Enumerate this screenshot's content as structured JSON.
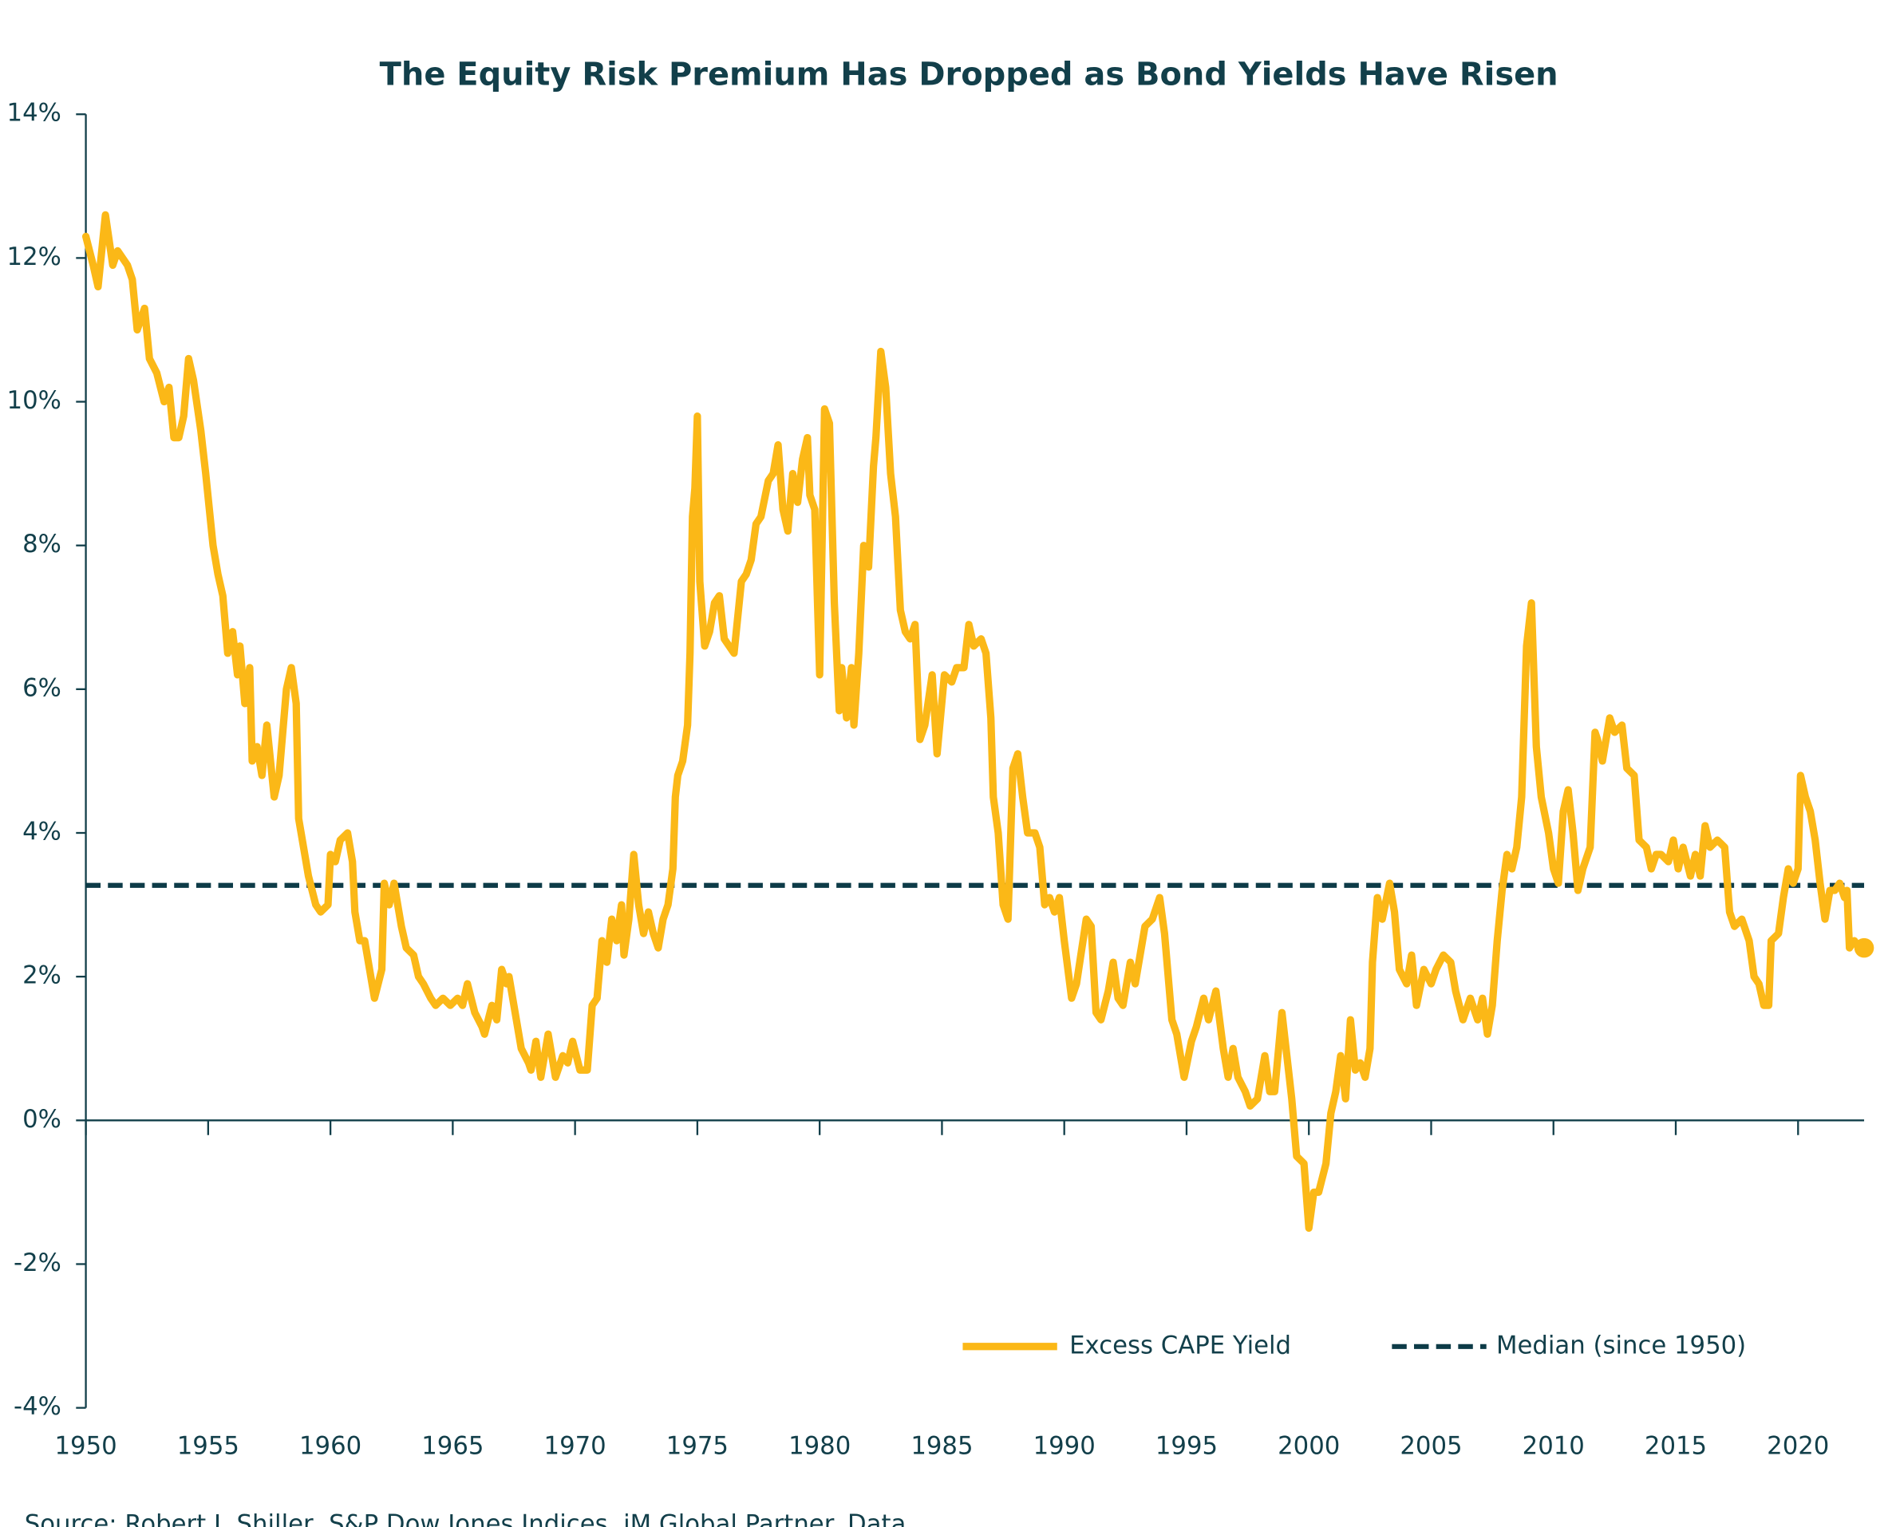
{
  "chart_data": {
    "type": "line",
    "title": "The Equity Risk Premium Has Dropped as Bond Yields Have Risen",
    "source": "Source: Robert J. Shiller, S&P Dow Jones Indices, iM Global Partner. Data",
    "xlim": [
      1950,
      2022.7
    ],
    "xticks": [
      1950,
      1955,
      1960,
      1965,
      1970,
      1975,
      1980,
      1985,
      1990,
      1995,
      2000,
      2005,
      2010,
      2015,
      2020
    ],
    "ylim": [
      -4,
      14
    ],
    "yticks": [
      {
        "value": -4,
        "label": "-4%"
      },
      {
        "value": -2,
        "label": "-2%"
      },
      {
        "value": 0,
        "label": "0%"
      },
      {
        "value": 2,
        "label": "2%"
      },
      {
        "value": 4,
        "label": "4%"
      },
      {
        "value": 6,
        "label": "6%"
      },
      {
        "value": 8,
        "label": "8%"
      },
      {
        "value": 10,
        "label": "10%"
      },
      {
        "value": 12,
        "label": "12%"
      },
      {
        "value": 14,
        "label": "14%"
      }
    ],
    "legend": "lower right",
    "median": {
      "name": "Median (since 1950)",
      "value": 3.27,
      "color": "#0d3b47",
      "style": "dashed"
    },
    "series": [
      {
        "name": "Excess CAPE Yield",
        "color": "#fbb817",
        "x": [
          1950.0,
          1950.3,
          1950.5,
          1950.8,
          1951.1,
          1951.3,
          1951.7,
          1951.9,
          1952.1,
          1952.4,
          1952.6,
          1952.9,
          1953.2,
          1953.4,
          1953.6,
          1953.8,
          1954.0,
          1954.2,
          1954.4,
          1954.7,
          1954.9,
          1955.2,
          1955.4,
          1955.6,
          1955.8,
          1956.0,
          1956.2,
          1956.3,
          1956.5,
          1956.7,
          1956.8,
          1957.0,
          1957.2,
          1957.4,
          1957.7,
          1957.9,
          1958.2,
          1958.4,
          1958.6,
          1958.7,
          1958.9,
          1959.1,
          1959.4,
          1959.6,
          1959.9,
          1960.0,
          1960.2,
          1960.4,
          1960.7,
          1960.9,
          1961.0,
          1961.2,
          1961.4,
          1961.6,
          1961.8,
          1962.1,
          1962.2,
          1962.4,
          1962.6,
          1962.9,
          1963.1,
          1963.4,
          1963.6,
          1963.8,
          1964.1,
          1964.3,
          1964.6,
          1964.9,
          1965.2,
          1965.4,
          1965.6,
          1965.9,
          1966.2,
          1966.3,
          1966.6,
          1966.8,
          1967.0,
          1967.2,
          1967.3,
          1967.6,
          1967.8,
          1968.1,
          1968.2,
          1968.4,
          1968.6,
          1968.9,
          1969.2,
          1969.5,
          1969.7,
          1969.9,
          1970.2,
          1970.5,
          1970.7,
          1970.9,
          1971.1,
          1971.3,
          1971.5,
          1971.7,
          1971.9,
          1972.0,
          1972.2,
          1972.4,
          1972.6,
          1972.8,
          1973.0,
          1973.2,
          1973.4,
          1973.6,
          1973.8,
          1974.0,
          1974.1,
          1974.2,
          1974.4,
          1974.6,
          1974.7,
          1974.8,
          1974.9,
          1975.0,
          1975.1,
          1975.3,
          1975.5,
          1975.7,
          1975.9,
          1976.1,
          1976.3,
          1976.5,
          1976.8,
          1977.0,
          1977.2,
          1977.4,
          1977.6,
          1977.9,
          1978.1,
          1978.3,
          1978.5,
          1978.7,
          1978.9,
          1979.1,
          1979.3,
          1979.5,
          1979.6,
          1979.8,
          1980.0,
          1980.2,
          1980.4,
          1980.6,
          1980.8,
          1980.9,
          1981.1,
          1981.3,
          1981.4,
          1981.6,
          1981.8,
          1982.0,
          1982.2,
          1982.3,
          1982.5,
          1982.7,
          1982.9,
          1983.1,
          1983.3,
          1983.5,
          1983.7,
          1983.9,
          1984.1,
          1984.3,
          1984.6,
          1984.8,
          1985.1,
          1985.4,
          1985.6,
          1985.9,
          1986.1,
          1986.3,
          1986.6,
          1986.8,
          1987.0,
          1987.1,
          1987.3,
          1987.5,
          1987.7,
          1987.9,
          1988.1,
          1988.3,
          1988.5,
          1988.8,
          1989.0,
          1989.2,
          1989.4,
          1989.6,
          1989.8,
          1990.0,
          1990.3,
          1990.5,
          1990.9,
          1991.1,
          1991.3,
          1991.5,
          1991.8,
          1992.0,
          1992.2,
          1992.4,
          1992.7,
          1992.9,
          1993.3,
          1993.6,
          1993.9,
          1994.1,
          1994.4,
          1994.6,
          1994.9,
          1995.2,
          1995.4,
          1995.7,
          1995.9,
          1996.2,
          1996.5,
          1996.7,
          1996.9,
          1997.1,
          1997.4,
          1997.6,
          1997.9,
          1998.2,
          1998.4,
          1998.6,
          1998.9,
          1999.1,
          1999.3,
          1999.5,
          1999.8,
          2000.0,
          2000.2,
          2000.4,
          2000.7,
          2000.9,
          2001.1,
          2001.3,
          2001.5,
          2001.7,
          2001.9,
          2002.1,
          2002.3,
          2002.5,
          2002.6,
          2002.8,
          2003.0,
          2003.3,
          2003.5,
          2003.7,
          2004.0,
          2004.2,
          2004.4,
          2004.7,
          2005.0,
          2005.2,
          2005.5,
          2005.8,
          2006.0,
          2006.3,
          2006.6,
          2006.9,
          2007.1,
          2007.3,
          2007.5,
          2007.7,
          2007.9,
          2008.1,
          2008.3,
          2008.5,
          2008.7,
          2008.9,
          2009.1,
          2009.3,
          2009.5,
          2009.8,
          2010.0,
          2010.2,
          2010.4,
          2010.6,
          2010.8,
          2011.0,
          2011.2,
          2011.5,
          2011.7,
          2011.8,
          2012.0,
          2012.3,
          2012.5,
          2012.8,
          2013.0,
          2013.3,
          2013.5,
          2013.8,
          2014.0,
          2014.2,
          2014.4,
          2014.7,
          2014.9,
          2015.1,
          2015.3,
          2015.6,
          2015.8,
          2016.0,
          2016.2,
          2016.4,
          2016.7,
          2017.0,
          2017.2,
          2017.4,
          2017.7,
          2018.0,
          2018.2,
          2018.4,
          2018.6,
          2018.8,
          2018.9,
          2019.2,
          2019.4,
          2019.6,
          2019.8,
          2020.0,
          2020.1,
          2020.3,
          2020.5,
          2020.7,
          2020.9,
          2021.1,
          2021.3,
          2021.5,
          2021.7,
          2021.9,
          2022.0,
          2022.1,
          2022.3,
          2022.5,
          2022.7
        ],
        "values": [
          12.3,
          11.9,
          11.6,
          12.6,
          11.9,
          12.1,
          11.9,
          11.7,
          11.0,
          11.3,
          10.6,
          10.4,
          10.0,
          10.2,
          9.5,
          9.5,
          9.8,
          10.6,
          10.3,
          9.6,
          9.0,
          8.0,
          7.6,
          7.3,
          6.5,
          6.8,
          6.2,
          6.6,
          5.8,
          6.3,
          5.0,
          5.2,
          4.8,
          5.5,
          4.5,
          4.8,
          6.0,
          6.3,
          5.8,
          4.2,
          3.8,
          3.4,
          3.0,
          2.9,
          3.0,
          3.7,
          3.6,
          3.9,
          4.0,
          3.6,
          2.9,
          2.5,
          2.5,
          2.1,
          1.7,
          2.1,
          3.3,
          3.0,
          3.3,
          2.7,
          2.4,
          2.3,
          2.0,
          1.9,
          1.7,
          1.6,
          1.7,
          1.6,
          1.7,
          1.6,
          1.9,
          1.5,
          1.3,
          1.2,
          1.6,
          1.4,
          2.1,
          1.9,
          2.0,
          1.4,
          1.0,
          0.8,
          0.7,
          1.1,
          0.6,
          1.2,
          0.6,
          0.9,
          0.8,
          1.1,
          0.7,
          0.7,
          1.6,
          1.7,
          2.5,
          2.2,
          2.8,
          2.5,
          3.0,
          2.3,
          2.8,
          3.7,
          3.0,
          2.6,
          2.9,
          2.6,
          2.4,
          2.8,
          3.0,
          3.5,
          4.5,
          4.8,
          5.0,
          5.5,
          6.5,
          8.4,
          8.8,
          9.8,
          7.5,
          6.6,
          6.8,
          7.2,
          7.3,
          6.7,
          6.6,
          6.5,
          7.5,
          7.6,
          7.8,
          8.3,
          8.4,
          8.9,
          9.0,
          9.4,
          8.5,
          8.2,
          9.0,
          8.6,
          9.2,
          9.5,
          8.7,
          8.5,
          6.2,
          9.9,
          9.7,
          7.2,
          5.7,
          6.3,
          5.6,
          6.3,
          5.5,
          6.5,
          8.0,
          7.7,
          9.1,
          9.5,
          10.7,
          10.2,
          9.0,
          8.4,
          7.1,
          6.8,
          6.7,
          6.9,
          5.3,
          5.5,
          6.2,
          5.1,
          6.2,
          6.1,
          6.3,
          6.3,
          6.9,
          6.6,
          6.7,
          6.5,
          5.6,
          4.5,
          4.0,
          3.0,
          2.8,
          4.9,
          5.1,
          4.5,
          4.0,
          4.0,
          3.8,
          3.0,
          3.1,
          2.9,
          3.1,
          2.5,
          1.7,
          1.9,
          2.8,
          2.7,
          1.5,
          1.4,
          1.8,
          2.2,
          1.7,
          1.6,
          2.2,
          1.9,
          2.7,
          2.8,
          3.1,
          2.6,
          1.4,
          1.2,
          0.6,
          1.1,
          1.3,
          1.7,
          1.4,
          1.8,
          1.0,
          0.6,
          1.0,
          0.6,
          0.4,
          0.2,
          0.3,
          0.9,
          0.4,
          0.4,
          1.5,
          0.9,
          0.3,
          -0.5,
          -0.6,
          -1.5,
          -1.0,
          -1.0,
          -0.6,
          0.1,
          0.4,
          0.9,
          0.3,
          1.4,
          0.7,
          0.8,
          0.6,
          1.0,
          2.2,
          3.1,
          2.8,
          3.3,
          2.9,
          2.1,
          1.9,
          2.3,
          1.6,
          2.1,
          1.9,
          2.1,
          2.3,
          2.2,
          1.8,
          1.4,
          1.7,
          1.4,
          1.7,
          1.2,
          1.6,
          2.5,
          3.2,
          3.7,
          3.5,
          3.8,
          4.5,
          6.6,
          7.2,
          5.2,
          4.5,
          4.0,
          3.5,
          3.3,
          4.3,
          4.6,
          4.0,
          3.2,
          3.5,
          3.8,
          5.4,
          5.3,
          5.0,
          5.6,
          5.4,
          5.5,
          4.9,
          4.8,
          3.9,
          3.8,
          3.5,
          3.7,
          3.7,
          3.6,
          3.9,
          3.5,
          3.8,
          3.4,
          3.7,
          3.4,
          4.1,
          3.8,
          3.9,
          3.8,
          2.9,
          2.7,
          2.8,
          2.5,
          2.0,
          1.9,
          1.6,
          1.6,
          2.5,
          2.6,
          3.1,
          3.5,
          3.3,
          3.5,
          4.8,
          4.5,
          4.3,
          3.9,
          3.3,
          2.8,
          3.2,
          3.2,
          3.3,
          3.1,
          3.2,
          2.4,
          2.5,
          2.4,
          2.4
        ]
      }
    ]
  }
}
